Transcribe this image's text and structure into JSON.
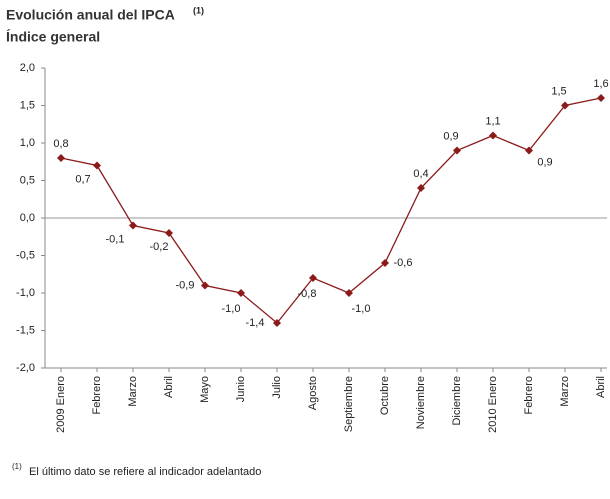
{
  "chart_data": {
    "type": "line",
    "title": "Evolución anual del IPCA",
    "title_note": "(1)",
    "subtitle": "Índice general",
    "footnote_mark": "(1)",
    "footnote": "El último dato se refiere al indicador adelantado",
    "categories": [
      "2009 Enero",
      "Febrero",
      "Marzo",
      "Abril",
      "Mayo",
      "Junio",
      "Julio",
      "Agosto",
      "Septiembre",
      "Octubre",
      "Noviembre",
      "Diciembre",
      "2010 Enero",
      "Febrero",
      "Marzo",
      "Abril"
    ],
    "series": [
      {
        "name": "IPCA",
        "color": "#8b1a1a",
        "values": [
          0.8,
          0.7,
          -0.1,
          -0.2,
          -0.9,
          -1.0,
          -1.4,
          -0.8,
          -1.0,
          -0.6,
          0.4,
          0.9,
          1.1,
          0.9,
          1.5,
          1.6
        ],
        "value_labels": [
          "0,8",
          "0,7",
          "-0,1",
          "-0,2",
          "-0,9",
          "-1,0",
          "-1,4",
          "-0,8",
          "-1,0",
          "-0,6",
          "0,4",
          "0,9",
          "1,1",
          "0,9",
          "1,5",
          "1,6"
        ]
      }
    ],
    "ylim": [
      -2.0,
      2.0
    ],
    "yticks": [
      {
        "value": -2.0,
        "label": "-2,0"
      },
      {
        "value": -1.5,
        "label": "-1,5"
      },
      {
        "value": -1.0,
        "label": "-1,0"
      },
      {
        "value": -0.5,
        "label": "-0,5"
      },
      {
        "value": 0.0,
        "label": "0,0"
      },
      {
        "value": 0.5,
        "label": "0,5"
      },
      {
        "value": 1.0,
        "label": "1,0"
      },
      {
        "value": 1.5,
        "label": "1,5"
      },
      {
        "value": 2.0,
        "label": "2,0"
      }
    ],
    "grid": false
  }
}
